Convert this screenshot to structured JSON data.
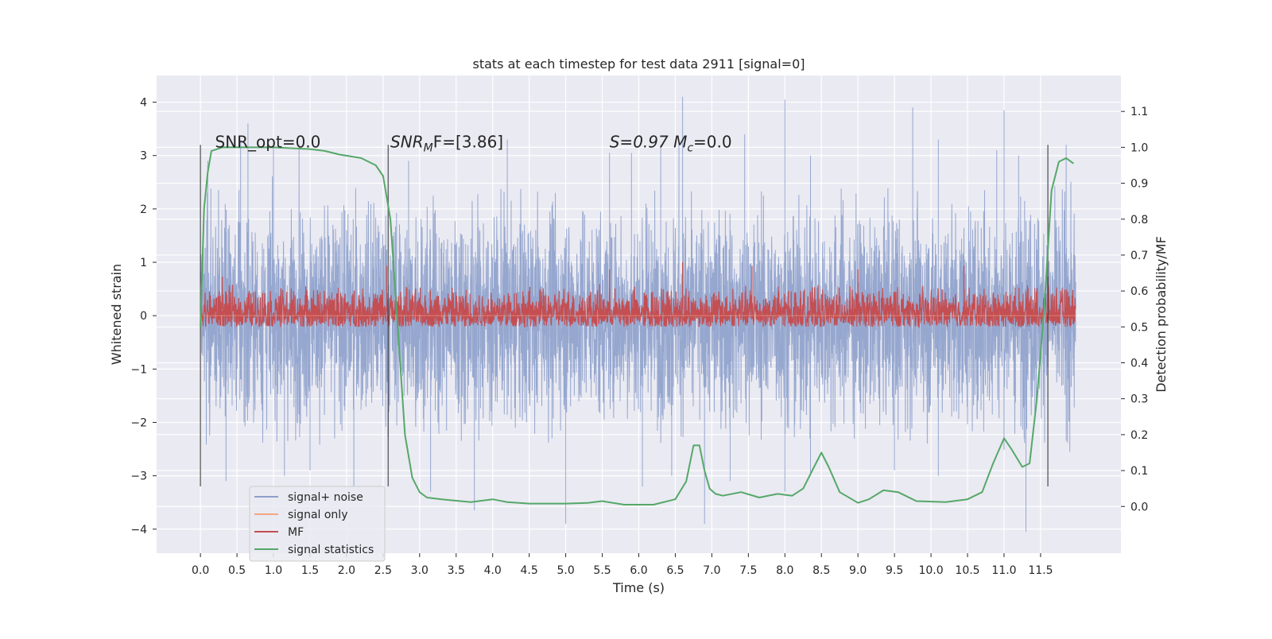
{
  "chart_data": {
    "type": "line",
    "title": "stats at each timestep for test data 2911 [signal=0]",
    "xlabel": "Time (s)",
    "ylabel": "Whitened strain",
    "ylabel_right": "Detection probability/MF",
    "xlim": [
      -0.6,
      12.6
    ],
    "ylim": [
      -4.45,
      4.5
    ],
    "ylim_right": [
      -0.13,
      1.2
    ],
    "x_ticks": [
      0.0,
      0.5,
      1.0,
      1.5,
      2.0,
      2.5,
      3.0,
      3.5,
      4.0,
      4.5,
      5.0,
      5.5,
      6.0,
      6.5,
      7.0,
      7.5,
      8.0,
      8.5,
      9.0,
      9.5,
      10.0,
      10.5,
      11.0,
      11.5
    ],
    "x_tick_labels": [
      "0.0",
      "0.5",
      "1.0",
      "1.5",
      "2.0",
      "2.5",
      "3.0",
      "3.5",
      "4.0",
      "4.5",
      "5.0",
      "5.5",
      "6.0",
      "6.5",
      "7.0",
      "7.5",
      "8.0",
      "8.5",
      "9.0",
      "9.5",
      "10.0",
      "10.5",
      "11.0",
      "11.5"
    ],
    "y_ticks": [
      -4,
      -3,
      -2,
      -1,
      0,
      1,
      2,
      3,
      4
    ],
    "y_tick_labels": [
      "−4",
      "−3",
      "−2",
      "−1",
      "0",
      "1",
      "2",
      "3",
      "4"
    ],
    "y_right_ticks": [
      0.0,
      0.1,
      0.2,
      0.3,
      0.4,
      0.5,
      0.6,
      0.7,
      0.8,
      0.9,
      1.0,
      1.1
    ],
    "y_right_tick_labels": [
      "0.0",
      "0.1",
      "0.2",
      "0.3",
      "0.4",
      "0.5",
      "0.6",
      "0.7",
      "0.8",
      "0.9",
      "1.0",
      "1.1"
    ],
    "grid": true,
    "legend_position": "lower-left",
    "legend": [
      {
        "label": "signal+ noise",
        "color": "#8da0cb"
      },
      {
        "label": "signal only",
        "color": "#f4a582"
      },
      {
        "label": "MF",
        "color": "#c44e52"
      },
      {
        "label": "signal statistics",
        "color": "#55a868"
      }
    ],
    "annotations": [
      {
        "text": "SNR_opt=0.0",
        "x": 0.2,
        "y": 3.15
      },
      {
        "text": "SNR",
        "sub": "M",
        "rest": "F=[3.86]",
        "x": 2.6,
        "y": 3.15
      },
      {
        "text": "S=0.97   M",
        "sub": "c",
        "rest": "=0.0",
        "x": 5.6,
        "y": 3.15
      }
    ],
    "vertical_lines_x": [
      0.0,
      2.57,
      11.6
    ],
    "vertical_lines_range": [
      -3.2,
      3.2
    ],
    "series": [
      {
        "key": "noise",
        "color": "#8da0cb",
        "axis": "left",
        "x_start": 0.0,
        "x_end": 11.98,
        "typical_range": [
          -1.9,
          1.9
        ],
        "peaks_up": [
          [
            0.1,
            2.9
          ],
          [
            0.55,
            3.3
          ],
          [
            0.65,
            3.6
          ],
          [
            1.0,
            3.3
          ],
          [
            1.35,
            3.2
          ],
          [
            2.85,
            2.9
          ],
          [
            4.2,
            3.3
          ],
          [
            5.6,
            3.05
          ],
          [
            5.9,
            3.05
          ],
          [
            6.3,
            3.2
          ],
          [
            6.55,
            3.2
          ],
          [
            6.6,
            4.1
          ],
          [
            7.45,
            3.4
          ],
          [
            8.0,
            4.05
          ],
          [
            8.35,
            3.0
          ],
          [
            9.75,
            3.9
          ],
          [
            10.1,
            3.3
          ],
          [
            10.9,
            3.1
          ],
          [
            11.0,
            3.85
          ],
          [
            11.2,
            3.0
          ],
          [
            11.85,
            3.2
          ]
        ],
        "peaks_down": [
          [
            0.35,
            -3.1
          ],
          [
            1.15,
            -3.0
          ],
          [
            1.5,
            -2.9
          ],
          [
            2.1,
            -3.2
          ],
          [
            3.15,
            -3.3
          ],
          [
            3.75,
            -3.65
          ],
          [
            5.0,
            -3.9
          ],
          [
            6.05,
            -3.2
          ],
          [
            6.45,
            -3.0
          ],
          [
            6.9,
            -3.9
          ],
          [
            7.25,
            -3.1
          ],
          [
            8.0,
            -3.3
          ],
          [
            8.35,
            -3.0
          ],
          [
            9.5,
            -2.9
          ],
          [
            10.1,
            -3.0
          ],
          [
            11.3,
            -4.05
          ],
          [
            11.9,
            -2.55
          ]
        ]
      },
      {
        "key": "signal_only",
        "color": "#f4a582",
        "axis": "left",
        "values_constant": 0.0
      },
      {
        "key": "mf",
        "color": "#c44e52",
        "axis": "right",
        "x_start": 0.0,
        "x_end": 11.98,
        "typical_range": [
          0.5,
          0.62
        ],
        "peaks": [
          [
            0.3,
            0.64
          ],
          [
            2.55,
            0.67
          ],
          [
            5.6,
            0.66
          ],
          [
            6.6,
            0.68
          ],
          [
            7.55,
            0.67
          ],
          [
            9.0,
            0.66
          ],
          [
            10.45,
            0.67
          ],
          [
            11.6,
            0.64
          ]
        ]
      },
      {
        "key": "signal_statistics",
        "color": "#55a868",
        "axis": "right",
        "x": [
          0.0,
          0.05,
          0.1,
          0.15,
          0.3,
          0.5,
          1.0,
          1.5,
          1.7,
          1.9,
          2.2,
          2.4,
          2.5,
          2.6,
          2.7,
          2.8,
          2.9,
          3.0,
          3.1,
          3.3,
          3.7,
          4.0,
          4.2,
          4.5,
          5.0,
          5.3,
          5.5,
          5.8,
          6.2,
          6.5,
          6.65,
          6.75,
          6.83,
          6.9,
          6.97,
          7.05,
          7.15,
          7.4,
          7.65,
          7.9,
          8.1,
          8.25,
          8.4,
          8.5,
          8.6,
          8.75,
          9.0,
          9.15,
          9.35,
          9.55,
          9.8,
          10.2,
          10.5,
          10.7,
          10.85,
          11.0,
          11.1,
          11.25,
          11.35,
          11.45,
          11.55,
          11.65,
          11.75,
          11.85,
          11.95
        ],
        "y": [
          0.5,
          0.83,
          0.93,
          0.99,
          1.0,
          1.0,
          1.0,
          0.995,
          0.99,
          0.98,
          0.97,
          0.95,
          0.92,
          0.8,
          0.5,
          0.2,
          0.08,
          0.04,
          0.025,
          0.02,
          0.012,
          0.02,
          0.012,
          0.008,
          0.008,
          0.01,
          0.015,
          0.005,
          0.005,
          0.02,
          0.07,
          0.17,
          0.17,
          0.1,
          0.05,
          0.035,
          0.03,
          0.04,
          0.025,
          0.035,
          0.03,
          0.05,
          0.11,
          0.15,
          0.11,
          0.04,
          0.01,
          0.02,
          0.045,
          0.04,
          0.015,
          0.012,
          0.02,
          0.04,
          0.12,
          0.19,
          0.16,
          0.11,
          0.12,
          0.3,
          0.55,
          0.88,
          0.96,
          0.97,
          0.955
        ]
      }
    ]
  }
}
